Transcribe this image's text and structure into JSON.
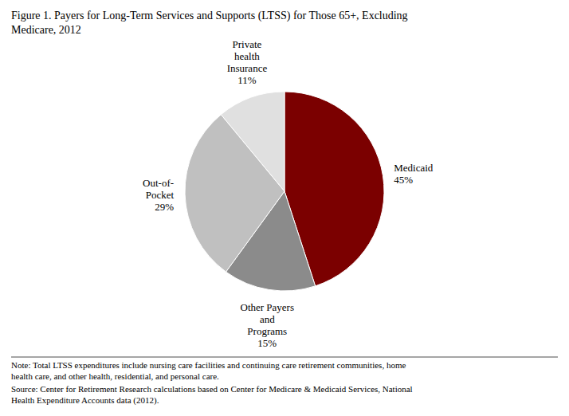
{
  "chart_data": {
    "type": "pie",
    "title": "Figure 1. Payers for Long-Term Services and Supports (LTSS) for Those 65+, Excluding\nMedicare, 2012",
    "categories": [
      "Medicaid",
      "Other Payers\nand\nPrograms",
      "Out-of-\nPocket",
      "Private\nhealth\nInsurance"
    ],
    "values": [
      45,
      15,
      29,
      11
    ],
    "value_labels": [
      "45%",
      "15%",
      "29%",
      "11%"
    ],
    "colors": [
      "#7B0000",
      "#8B8B8B",
      "#C0C0C0",
      "#E0E0E0"
    ],
    "data_labels": true,
    "annotations": [
      "Note: Total LTSS expenditures include nursing care facilities and continuing care retirement communities, home\nhealth care, and other health, residential, and personal care.",
      "Source: Center for Retirement Research calculations based on Center for Medicare & Medicaid Services, National\nHealth Expenditure Accounts data (2012)."
    ]
  }
}
